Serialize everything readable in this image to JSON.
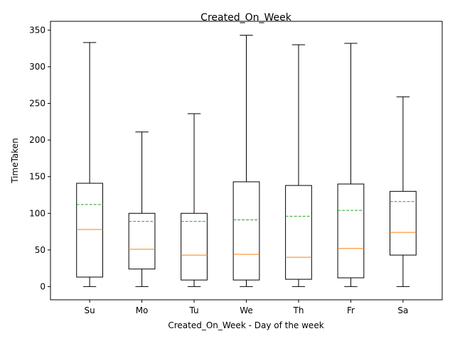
{
  "chart_data": {
    "type": "box",
    "title": "Created_On_Week",
    "xlabel": "Created_On_Week - Day of the week",
    "ylabel": "TimeTaken",
    "ylim": [
      -18,
      362
    ],
    "yticks": [
      0,
      50,
      100,
      150,
      200,
      250,
      300,
      350
    ],
    "categories": [
      "Su",
      "Mo",
      "Tu",
      "We",
      "Th",
      "Fr",
      "Sa"
    ],
    "boxes": [
      {
        "whisker_low": 0,
        "q1": 13,
        "median": 78,
        "mean": 112,
        "q3": 141,
        "whisker_high": 333
      },
      {
        "whisker_low": 0,
        "q1": 24,
        "median": 51,
        "mean": 89,
        "q3": 100,
        "whisker_high": 211
      },
      {
        "whisker_low": 0,
        "q1": 9,
        "median": 43,
        "mean": 89,
        "q3": 100,
        "whisker_high": 236
      },
      {
        "whisker_low": 0,
        "q1": 9,
        "median": 44,
        "mean": 91,
        "q3": 143,
        "whisker_high": 343
      },
      {
        "whisker_low": 0,
        "q1": 10,
        "median": 40,
        "mean": 96,
        "q3": 138,
        "whisker_high": 330
      },
      {
        "whisker_low": 0,
        "q1": 12,
        "median": 52,
        "mean": 104,
        "q3": 140,
        "whisker_high": 332
      },
      {
        "whisker_low": 0,
        "q1": 43,
        "median": 74,
        "mean": 116,
        "q3": 130,
        "whisker_high": 259
      }
    ],
    "colors": {
      "box": "#000000",
      "median": "#ff7f0e",
      "mean": "#2ca02c"
    },
    "grid": false,
    "legend": "none"
  }
}
